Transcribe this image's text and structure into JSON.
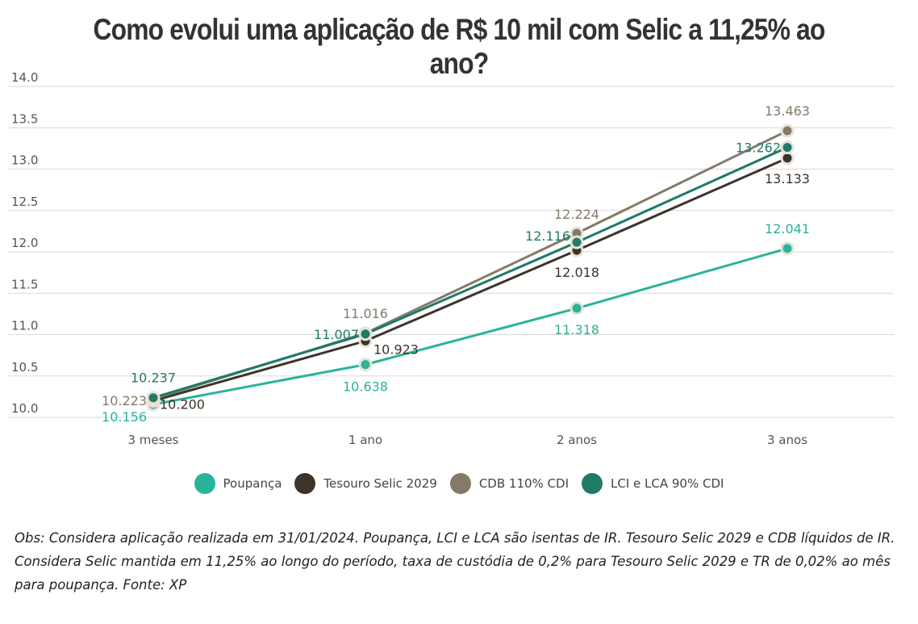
{
  "chart_data": {
    "type": "line",
    "title": "Como evolui uma aplicação de R$ 10 mil com Selic a 11,25% ao ano?",
    "categories": [
      "3 meses",
      "1 ano",
      "2 anos",
      "3 anos"
    ],
    "ylim": [
      10.0,
      14.0
    ],
    "yticks": [
      "10.0",
      "10.5",
      "11.0",
      "11.5",
      "12.0",
      "12.5",
      "13.0",
      "13.5",
      "14.0"
    ],
    "grid": true,
    "legend_position": "bottom",
    "series": [
      {
        "name": "Poupança",
        "color": "#2bb39a",
        "values": [
          10.156,
          10.638,
          11.318,
          12.041
        ],
        "labels": [
          "10.156",
          "10.638",
          "11.318",
          "12.041"
        ]
      },
      {
        "name": "Tesouro Selic 2029",
        "color": "#3d3329",
        "values": [
          10.2,
          10.923,
          12.018,
          13.133
        ],
        "labels": [
          "10.200",
          "10.923",
          "12.018",
          "13.133"
        ]
      },
      {
        "name": "CDB 110% CDI",
        "color": "#857a68",
        "values": [
          10.223,
          11.016,
          12.224,
          13.463
        ],
        "labels": [
          "10.223",
          "11.016",
          "12.224",
          "13.463"
        ]
      },
      {
        "name": "LCI e LCA 90% CDI",
        "color": "#1f7a68",
        "values": [
          10.237,
          11.007,
          12.116,
          13.262
        ],
        "labels": [
          "10.237",
          "11.007",
          "12.116",
          "13.262"
        ]
      }
    ]
  },
  "note": "Obs: Considera aplicação realizada em 31/01/2024. Poupança, LCI e LCA são isentas de IR. Tesouro Selic 2029 e CDB líquidos de IR. Considera Selic mantida em 11,25% ao longo do período, taxa de custódia de 0,2% para Tesouro Selic 2029 e TR de 0,02% ao mês para poupança. Fonte: XP"
}
